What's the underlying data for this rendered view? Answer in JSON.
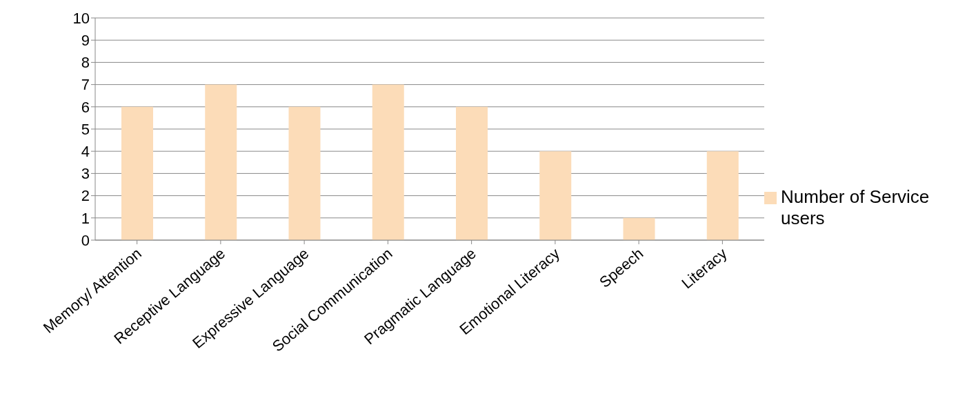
{
  "chart_data": {
    "type": "bar",
    "categories": [
      "Memory/ Attention",
      "Receptive Language",
      "Expressive Language",
      "Social Communication",
      "Pragmatic Language",
      "Emotional Literacy",
      "Speech",
      "Literacy"
    ],
    "series": [
      {
        "name": "Number of Service users",
        "color": "#fcdcb8",
        "values": [
          6,
          7,
          6,
          7,
          6,
          4,
          1,
          4
        ]
      }
    ],
    "ylim": [
      0,
      10
    ],
    "yticks": [
      0,
      1,
      2,
      3,
      4,
      5,
      6,
      7,
      8,
      9,
      10
    ],
    "grid": "y",
    "legend": "right"
  }
}
